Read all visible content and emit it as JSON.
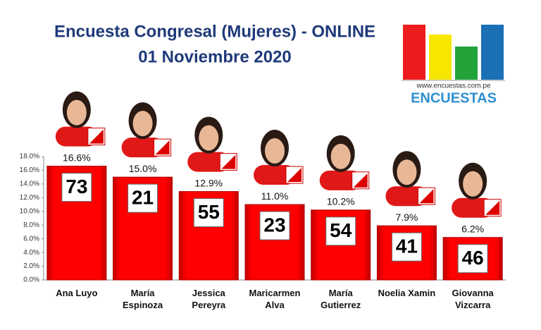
{
  "chart_data": {
    "type": "bar",
    "title": "Encuesta Congresal (Mujeres) - ONLINE",
    "subtitle": "01 Noviembre 2020",
    "source_url": "www.encuestas.com.pe",
    "source_name": "ENCUESTAS",
    "categories": [
      "Ana Luyo",
      "María\nEspinoza",
      "Jessica\nPereyra",
      "Maricarmen\nAlva",
      "María\nGutierrez",
      "Noelia Xamin",
      "Giovanna\nVizcarra"
    ],
    "values": [
      16.6,
      15.0,
      12.9,
      11.0,
      10.2,
      7.9,
      6.2
    ],
    "value_labels": [
      "16.6%",
      "15.0%",
      "12.9%",
      "11.0%",
      "10.2%",
      "7.9%",
      "6.2%"
    ],
    "ballot_numbers": [
      73,
      21,
      55,
      23,
      54,
      41,
      46
    ],
    "color": "#ff0000",
    "ylim": [
      0,
      18
    ],
    "yticks": [
      {
        "value": 0,
        "label": "0.0%"
      },
      {
        "value": 2,
        "label": "2.0%"
      },
      {
        "value": 4,
        "label": "4.0%"
      },
      {
        "value": 6,
        "label": "6.0%"
      },
      {
        "value": 8,
        "label": "8.0%"
      },
      {
        "value": 10,
        "label": "10.0%"
      },
      {
        "value": 12,
        "label": "12.0%"
      },
      {
        "value": 14,
        "label": "14.0%"
      },
      {
        "value": 16,
        "label": "16.0%"
      },
      {
        "value": 18,
        "label": "18.0%"
      }
    ]
  }
}
